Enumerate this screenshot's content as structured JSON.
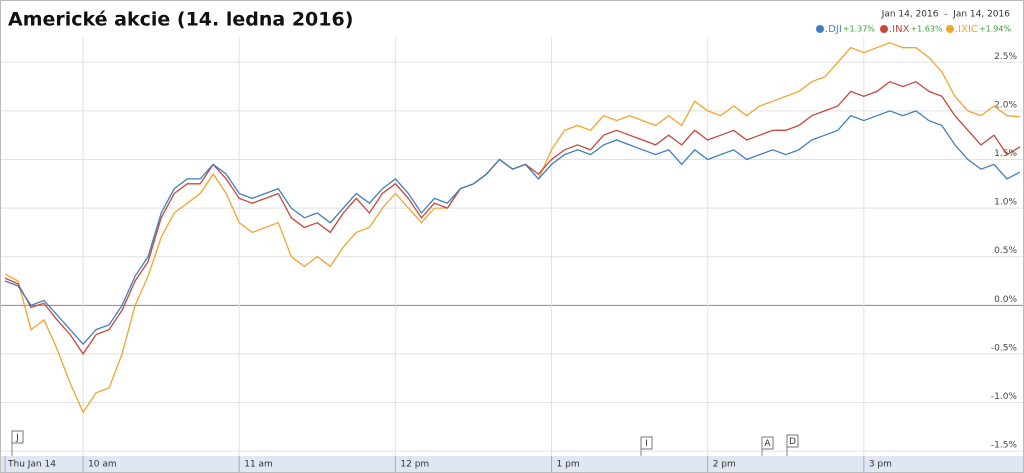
{
  "chart_data": {
    "type": "line",
    "title": "Americké akcie (14. ledna 2016)",
    "date_range": "Jan 14, 2016  -  Jan 14, 2016",
    "categories": [
      "Thu Jan 14",
      null,
      null,
      null,
      null,
      null,
      "10 am",
      null,
      null,
      null,
      null,
      null,
      null,
      null,
      null,
      null,
      null,
      null,
      "11 am",
      null,
      null,
      null,
      null,
      null,
      null,
      null,
      null,
      null,
      null,
      null,
      "12 pm",
      null,
      null,
      null,
      null,
      null,
      null,
      null,
      null,
      null,
      null,
      null,
      "1 pm",
      null,
      null,
      null,
      null,
      null,
      null,
      null,
      null,
      null,
      null,
      null,
      "2 pm",
      null,
      null,
      null,
      null,
      null,
      null,
      null,
      null,
      null,
      null,
      null,
      "3 pm",
      null,
      null,
      null,
      null,
      null,
      null,
      null,
      null,
      null,
      null,
      null,
      null
    ],
    "series": [
      {
        "name": ".DJI",
        "change": "+1.37%",
        "color": "#3f7fc0",
        "values": [
          0.25,
          0.2,
          0.0,
          0.05,
          -0.1,
          -0.25,
          -0.4,
          -0.25,
          -0.2,
          0.0,
          0.3,
          0.5,
          0.95,
          1.2,
          1.3,
          1.3,
          1.45,
          1.35,
          1.15,
          1.1,
          1.15,
          1.2,
          1.0,
          0.9,
          0.95,
          0.85,
          1.0,
          1.15,
          1.05,
          1.2,
          1.3,
          1.15,
          0.95,
          1.1,
          1.05,
          1.2,
          1.25,
          1.35,
          1.5,
          1.4,
          1.45,
          1.3,
          1.45,
          1.55,
          1.6,
          1.55,
          1.65,
          1.7,
          1.65,
          1.6,
          1.55,
          1.6,
          1.45,
          1.6,
          1.5,
          1.55,
          1.6,
          1.5,
          1.55,
          1.6,
          1.55,
          1.6,
          1.7,
          1.75,
          1.8,
          1.95,
          1.9,
          1.95,
          2.0,
          1.95,
          2.0,
          1.9,
          1.85,
          1.65,
          1.5,
          1.4,
          1.45,
          1.3,
          1.37
        ]
      },
      {
        "name": ".INX",
        "change": "+1.63%",
        "color": "#c8473a",
        "values": [
          0.28,
          0.22,
          -0.02,
          0.02,
          -0.15,
          -0.3,
          -0.5,
          -0.3,
          -0.25,
          -0.05,
          0.25,
          0.45,
          0.9,
          1.15,
          1.25,
          1.25,
          1.45,
          1.3,
          1.1,
          1.05,
          1.1,
          1.15,
          0.9,
          0.8,
          0.85,
          0.75,
          0.95,
          1.1,
          0.95,
          1.15,
          1.25,
          1.1,
          0.9,
          1.05,
          1.0,
          1.2,
          1.25,
          1.35,
          1.5,
          1.4,
          1.45,
          1.35,
          1.5,
          1.6,
          1.65,
          1.6,
          1.75,
          1.8,
          1.75,
          1.7,
          1.65,
          1.75,
          1.65,
          1.8,
          1.7,
          1.75,
          1.8,
          1.7,
          1.75,
          1.8,
          1.8,
          1.85,
          1.95,
          2.0,
          2.05,
          2.2,
          2.15,
          2.2,
          2.3,
          2.25,
          2.3,
          2.2,
          2.15,
          1.95,
          1.8,
          1.65,
          1.75,
          1.55,
          1.63
        ]
      },
      {
        "name": ".IXIC",
        "change": "+1.94%",
        "color": "#f2a431",
        "values": [
          0.32,
          0.25,
          -0.25,
          -0.15,
          -0.45,
          -0.8,
          -1.1,
          -0.9,
          -0.85,
          -0.5,
          0.0,
          0.3,
          0.7,
          0.95,
          1.05,
          1.15,
          1.35,
          1.15,
          0.85,
          0.75,
          0.8,
          0.85,
          0.5,
          0.4,
          0.5,
          0.4,
          0.6,
          0.75,
          0.8,
          1.0,
          1.15,
          1.0,
          0.85,
          1.0,
          1.0,
          1.2,
          1.25,
          1.35,
          1.5,
          1.4,
          1.45,
          1.3,
          1.6,
          1.8,
          1.85,
          1.8,
          1.95,
          1.9,
          1.95,
          1.9,
          1.85,
          1.95,
          1.85,
          2.1,
          2.0,
          1.95,
          2.05,
          1.95,
          2.05,
          2.1,
          2.15,
          2.2,
          2.3,
          2.35,
          2.5,
          2.65,
          2.6,
          2.65,
          2.7,
          2.65,
          2.65,
          2.55,
          2.4,
          2.15,
          2.0,
          1.95,
          2.05,
          1.95,
          1.94
        ]
      }
    ],
    "ylim": [
      -1.55,
      2.76
    ],
    "yticks": [
      {
        "value": 2.5,
        "label": "2.5%"
      },
      {
        "value": 2.0,
        "label": "2.0%"
      },
      {
        "value": 1.5,
        "label": "1.5%"
      },
      {
        "value": 1.0,
        "label": "1.0%"
      },
      {
        "value": 0.5,
        "label": "0.5%"
      },
      {
        "value": 0.0,
        "label": "0.0%"
      },
      {
        "value": -0.5,
        "label": "-0.5%"
      },
      {
        "value": -1.0,
        "label": "-1.0%"
      },
      {
        "value": -1.5,
        "label": "-1.5%"
      }
    ],
    "grid": true,
    "annotations": [
      "J",
      "I",
      "A",
      "D"
    ]
  }
}
